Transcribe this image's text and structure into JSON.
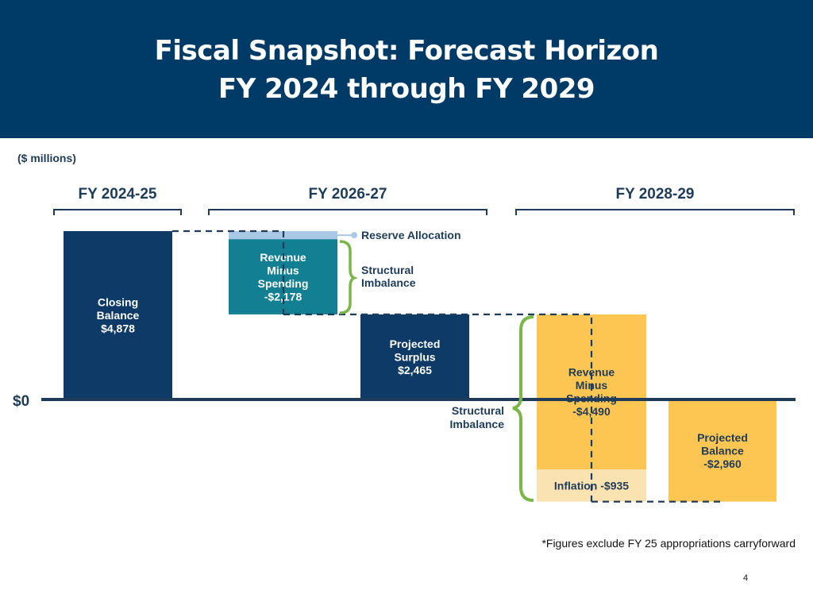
{
  "header": {
    "title_line1": "Fiscal Snapshot: Forecast Horizon",
    "title_line2": "FY 2024 through FY 2029"
  },
  "units_label": "($ millions)",
  "footnote": "*Figures exclude FY 25 appropriations carryforward",
  "page_number": "4",
  "colors": {
    "header_bg": "#003a66",
    "navy": "#0d3a66",
    "teal": "#137f93",
    "light_blue": "#a8c8e6",
    "gold": "#fdc652",
    "light_gold": "#fae3b0",
    "bracket_green": "#7ab648"
  },
  "chart_data": {
    "type": "bar",
    "subtype": "waterfall",
    "unit": "$ millions",
    "zero_label": "$0",
    "periods": [
      "FY 2024-25",
      "FY 2026-27",
      "FY 2028-29"
    ],
    "bars": [
      {
        "period": "FY 2024-25",
        "label_lines": [
          "Closing",
          "Balance",
          "$4,878"
        ],
        "start": 0,
        "end": 4878,
        "value": 4878,
        "color": "navy"
      },
      {
        "period": "FY 2026-27",
        "label_lines": [],
        "start": 4878,
        "end": 4643,
        "value": -235,
        "color": "light_blue"
      },
      {
        "period": "FY 2026-27",
        "label_lines": [
          "Revenue",
          "Minus",
          "Spending",
          "-$2,178"
        ],
        "start": 4643,
        "end": 2465,
        "value": -2178,
        "color": "teal"
      },
      {
        "period": "FY 2026-27",
        "label_lines": [
          "Projected",
          "Surplus",
          "$2,465"
        ],
        "start": 0,
        "end": 2465,
        "value": 2465,
        "color": "navy"
      },
      {
        "period": "FY 2028-29",
        "label_lines": [
          "Revenue",
          "Minus",
          "Spending",
          "-$4,490"
        ],
        "start": 2465,
        "end": -2025,
        "value": -4490,
        "color": "gold"
      },
      {
        "period": "FY 2028-29",
        "label_lines": [
          "Inflation -$935"
        ],
        "start": -2025,
        "end": -2960,
        "value": -935,
        "color": "light_gold"
      },
      {
        "period": "FY 2028-29",
        "label_lines": [
          "Projected",
          "Balance",
          "-$2,960"
        ],
        "start": 0,
        "end": -2960,
        "value": -2960,
        "color": "gold"
      }
    ],
    "annotations": {
      "reserve_allocation": "Reserve Allocation",
      "structural_imbalance_1": [
        "Structural",
        "Imbalance"
      ],
      "structural_imbalance_2": [
        "Structural",
        "Imbalance"
      ]
    }
  }
}
